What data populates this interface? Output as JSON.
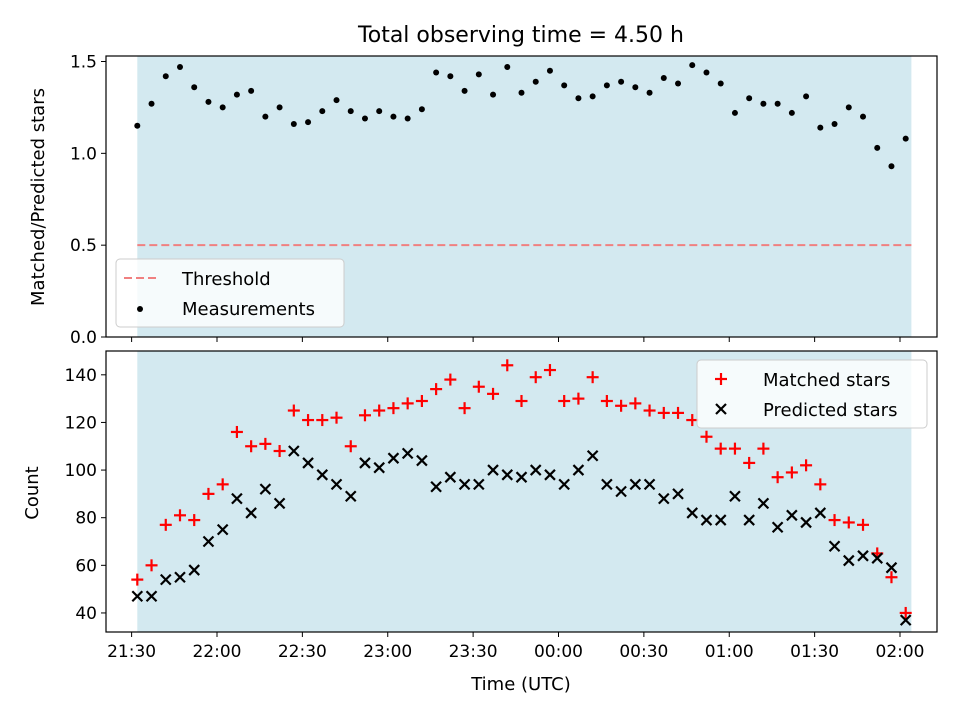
{
  "chart_data": [
    {
      "type": "scatter",
      "title": "Total observing time = 4.50 h",
      "xlabel": "",
      "ylabel": "Matched/Predicted stars",
      "ylim": [
        0,
        1.53
      ],
      "yticks": [
        0.0,
        0.5,
        1.0,
        1.5
      ],
      "ytick_labels": [
        "0.0",
        "0.5",
        "1.0",
        "1.5"
      ],
      "xlim": [
        "21:21",
        "02:13"
      ],
      "shaded_interval": [
        "21:32",
        "02:04"
      ],
      "shade_color": "#d3e9f0",
      "legend_position": "lower-left",
      "series": [
        {
          "name": "Threshold",
          "kind": "hline",
          "style": "dashed",
          "color": "#f08080",
          "value": 0.5
        },
        {
          "name": "Measurements",
          "kind": "points",
          "marker": "dot",
          "color": "#000000",
          "x": [
            "21:32",
            "21:37",
            "21:42",
            "21:47",
            "21:52",
            "21:57",
            "22:02",
            "22:07",
            "22:12",
            "22:17",
            "22:22",
            "22:27",
            "22:32",
            "22:37",
            "22:42",
            "22:47",
            "22:52",
            "22:57",
            "23:02",
            "23:07",
            "23:12",
            "23:17",
            "23:22",
            "23:27",
            "23:32",
            "23:37",
            "23:42",
            "23:47",
            "23:52",
            "23:57",
            "00:02",
            "00:07",
            "00:12",
            "00:17",
            "00:22",
            "00:27",
            "00:32",
            "00:37",
            "00:42",
            "00:47",
            "00:52",
            "00:57",
            "01:02",
            "01:07",
            "01:12",
            "01:17",
            "01:22",
            "01:27",
            "01:32",
            "01:37",
            "01:42",
            "01:47",
            "01:52",
            "01:57",
            "02:02"
          ],
          "y": [
            1.15,
            1.27,
            1.42,
            1.47,
            1.36,
            1.28,
            1.25,
            1.32,
            1.34,
            1.2,
            1.25,
            1.16,
            1.17,
            1.23,
            1.29,
            1.23,
            1.19,
            1.23,
            1.2,
            1.19,
            1.24,
            1.44,
            1.42,
            1.34,
            1.43,
            1.32,
            1.47,
            1.33,
            1.39,
            1.45,
            1.37,
            1.3,
            1.31,
            1.37,
            1.39,
            1.36,
            1.33,
            1.41,
            1.38,
            1.48,
            1.44,
            1.38,
            1.22,
            1.3,
            1.27,
            1.27,
            1.22,
            1.31,
            1.14,
            1.16,
            1.25,
            1.2,
            1.03,
            0.93,
            1.08
          ]
        }
      ]
    },
    {
      "type": "scatter",
      "title": "",
      "xlabel": "Time (UTC)",
      "ylabel": "Count",
      "ylim": [
        32,
        150
      ],
      "yticks": [
        40,
        60,
        80,
        100,
        120,
        140
      ],
      "ytick_labels": [
        "40",
        "60",
        "80",
        "100",
        "120",
        "140"
      ],
      "xlim": [
        "21:21",
        "02:13"
      ],
      "xticks": [
        "21:30",
        "22:00",
        "22:30",
        "23:00",
        "23:30",
        "00:00",
        "00:30",
        "01:00",
        "01:30",
        "02:00"
      ],
      "xtick_labels": [
        "21:30",
        "22:00",
        "22:30",
        "23:00",
        "23:30",
        "00:00",
        "00:30",
        "01:00",
        "01:30",
        "02:00"
      ],
      "shaded_interval": [
        "21:32",
        "02:04"
      ],
      "shade_color": "#d3e9f0",
      "legend_position": "top-right",
      "series": [
        {
          "name": "Matched stars",
          "kind": "points",
          "marker": "plus",
          "color": "#ff0000",
          "x": [
            "21:32",
            "21:37",
            "21:42",
            "21:47",
            "21:52",
            "21:57",
            "22:02",
            "22:07",
            "22:12",
            "22:17",
            "22:22",
            "22:27",
            "22:32",
            "22:37",
            "22:42",
            "22:47",
            "22:52",
            "22:57",
            "23:02",
            "23:07",
            "23:12",
            "23:17",
            "23:22",
            "23:27",
            "23:32",
            "23:37",
            "23:42",
            "23:47",
            "23:52",
            "23:57",
            "00:02",
            "00:07",
            "00:12",
            "00:17",
            "00:22",
            "00:27",
            "00:32",
            "00:37",
            "00:42",
            "00:47",
            "00:52",
            "00:57",
            "01:02",
            "01:07",
            "01:12",
            "01:17",
            "01:22",
            "01:27",
            "01:32",
            "01:37",
            "01:42",
            "01:47",
            "01:52",
            "01:57",
            "02:02"
          ],
          "y": [
            54,
            60,
            77,
            81,
            79,
            90,
            94,
            116,
            110,
            111,
            108,
            125,
            121,
            121,
            122,
            110,
            123,
            125,
            126,
            128,
            129,
            134,
            138,
            126,
            135,
            132,
            144,
            129,
            139,
            142,
            129,
            130,
            139,
            129,
            127,
            128,
            125,
            124,
            124,
            121,
            114,
            109,
            109,
            103,
            109,
            97,
            99,
            102,
            94,
            79,
            78,
            77,
            65,
            55,
            40
          ]
        },
        {
          "name": "Predicted stars",
          "kind": "points",
          "marker": "x",
          "color": "#000000",
          "x": [
            "21:32",
            "21:37",
            "21:42",
            "21:47",
            "21:52",
            "21:57",
            "22:02",
            "22:07",
            "22:12",
            "22:17",
            "22:22",
            "22:27",
            "22:32",
            "22:37",
            "22:42",
            "22:47",
            "22:52",
            "22:57",
            "23:02",
            "23:07",
            "23:12",
            "23:17",
            "23:22",
            "23:27",
            "23:32",
            "23:37",
            "23:42",
            "23:47",
            "23:52",
            "23:57",
            "00:02",
            "00:07",
            "00:12",
            "00:17",
            "00:22",
            "00:27",
            "00:32",
            "00:37",
            "00:42",
            "00:47",
            "00:52",
            "00:57",
            "01:02",
            "01:07",
            "01:12",
            "01:17",
            "01:22",
            "01:27",
            "01:32",
            "01:37",
            "01:42",
            "01:47",
            "01:52",
            "01:57",
            "02:02"
          ],
          "y": [
            47,
            47,
            54,
            55,
            58,
            70,
            75,
            88,
            82,
            92,
            86,
            108,
            103,
            98,
            94,
            89,
            103,
            101,
            105,
            107,
            104,
            93,
            97,
            94,
            94,
            100,
            98,
            97,
            100,
            98,
            94,
            100,
            106,
            94,
            91,
            94,
            94,
            88,
            90,
            82,
            79,
            79,
            89,
            79,
            86,
            76,
            81,
            78,
            82,
            68,
            62,
            64,
            63,
            59,
            37
          ]
        }
      ]
    }
  ]
}
